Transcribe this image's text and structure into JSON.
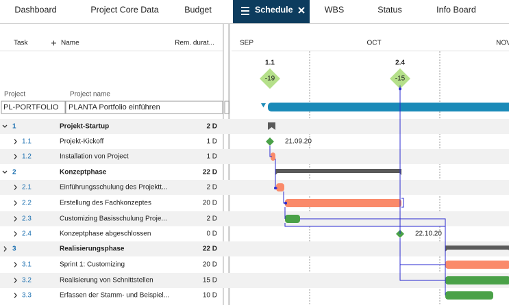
{
  "tabs": [
    "Dashboard",
    "Project Core Data",
    "Budget",
    "Schedule",
    "WBS",
    "Status",
    "Info Board"
  ],
  "active_tab": 3,
  "columns": {
    "task": "Task",
    "name": "Name",
    "duration": "Rem. durat..."
  },
  "project_fields": {
    "project": "Project",
    "project_name": "Project name"
  },
  "project": {
    "id": "PL-PORTFOLIO",
    "name": "PLANTA Portfolio einführen"
  },
  "months": [
    "SEP",
    "OCT",
    "NOV"
  ],
  "milestones": [
    {
      "id": "1.1",
      "offset": "-19"
    },
    {
      "id": "2.4",
      "offset": "-15"
    }
  ],
  "rows": [
    {
      "id": "1",
      "name": "Projekt-Startup",
      "duration": "2 D",
      "expanded": true
    },
    {
      "id": "1.1",
      "name": "Projekt-Kickoff",
      "duration": "1 D"
    },
    {
      "id": "1.2",
      "name": "Installation von Project",
      "duration": "1 D"
    },
    {
      "id": "2",
      "name": "Konzeptphase",
      "duration": "22 D",
      "expanded": true
    },
    {
      "id": "2.1",
      "name": "Einführungsschulung des Projektt...",
      "duration": "2 D"
    },
    {
      "id": "2.2",
      "name": "Erstellung des Fachkonzeptes",
      "duration": "20 D"
    },
    {
      "id": "2.3",
      "name": "Customizing Basisschulung Proje...",
      "duration": "2 D"
    },
    {
      "id": "2.4",
      "name": "Konzeptphase abgeschlossen",
      "duration": "0 D"
    },
    {
      "id": "3",
      "name": "Realisierungsphase",
      "duration": "22 D"
    },
    {
      "id": "3.1",
      "name": "Sprint 1: Customizing",
      "duration": "20 D"
    },
    {
      "id": "3.2",
      "name": "Realisierung von Schnittstellen",
      "duration": "15 D"
    },
    {
      "id": "3.3",
      "name": "Erfassen der Stamm- und Beispiel...",
      "duration": "10 D"
    }
  ],
  "date_labels": [
    "21.09.20",
    "22.10.20"
  ]
}
